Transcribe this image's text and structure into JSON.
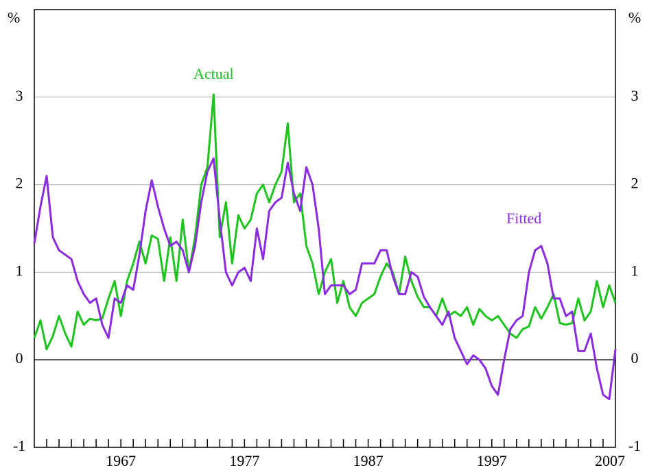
{
  "chart_data": {
    "type": "line",
    "y_unit_left": "%",
    "y_unit_right": "%",
    "x": [
      1960,
      1960.5,
      1961,
      1961.5,
      1962,
      1962.5,
      1963,
      1963.5,
      1964,
      1964.5,
      1965,
      1965.5,
      1966,
      1966.5,
      1967,
      1967.5,
      1968,
      1968.5,
      1969,
      1969.5,
      1970,
      1970.5,
      1971,
      1971.5,
      1972,
      1972.5,
      1973,
      1973.5,
      1974,
      1974.5,
      1975,
      1975.5,
      1976,
      1976.5,
      1977,
      1977.5,
      1978,
      1978.5,
      1979,
      1979.5,
      1980,
      1980.5,
      1981,
      1981.5,
      1982,
      1982.5,
      1983,
      1983.5,
      1984,
      1984.5,
      1985,
      1985.5,
      1986,
      1986.5,
      1987,
      1987.5,
      1988,
      1988.5,
      1989,
      1989.5,
      1990,
      1990.5,
      1991,
      1991.5,
      1992,
      1992.5,
      1993,
      1993.5,
      1994,
      1994.5,
      1995,
      1995.5,
      1996,
      1996.5,
      1997,
      1997.5,
      1998,
      1998.5,
      1999,
      1999.5,
      2000,
      2000.5,
      2001,
      2001.5,
      2002,
      2002.5,
      2003,
      2003.5,
      2004,
      2004.5,
      2005,
      2005.5,
      2006,
      2006.5,
      2007
    ],
    "series": [
      {
        "name": "Actual",
        "color": "#1ec31e",
        "values": [
          0.25,
          0.45,
          0.12,
          0.27,
          0.5,
          0.3,
          0.15,
          0.55,
          0.4,
          0.47,
          0.45,
          0.47,
          0.7,
          0.9,
          0.5,
          0.9,
          1.1,
          1.35,
          1.1,
          1.42,
          1.38,
          0.9,
          1.4,
          0.9,
          1.6,
          1.0,
          1.4,
          2.0,
          2.2,
          3.03,
          1.4,
          1.8,
          1.1,
          1.65,
          1.5,
          1.6,
          1.9,
          2.0,
          1.8,
          2.0,
          2.15,
          2.7,
          1.8,
          1.9,
          1.3,
          1.1,
          0.75,
          1.0,
          1.15,
          0.65,
          0.9,
          0.6,
          0.5,
          0.65,
          0.7,
          0.75,
          0.95,
          1.1,
          1.0,
          0.75,
          1.18,
          0.9,
          0.72,
          0.6,
          0.6,
          0.5,
          0.7,
          0.5,
          0.55,
          0.5,
          0.6,
          0.4,
          0.58,
          0.5,
          0.45,
          0.5,
          0.4,
          0.3,
          0.25,
          0.35,
          0.38,
          0.6,
          0.47,
          0.6,
          0.75,
          0.42,
          0.4,
          0.42,
          0.7,
          0.45,
          0.55,
          0.9,
          0.6,
          0.85,
          0.65
        ]
      },
      {
        "name": "Fitted",
        "color": "#8a2be2",
        "values": [
          1.33,
          1.75,
          2.1,
          1.4,
          1.25,
          1.2,
          1.15,
          0.9,
          0.75,
          0.65,
          0.7,
          0.4,
          0.25,
          0.7,
          0.65,
          0.85,
          0.8,
          1.2,
          1.7,
          2.05,
          1.75,
          1.5,
          1.3,
          1.35,
          1.25,
          1.0,
          1.3,
          1.8,
          2.15,
          2.3,
          1.6,
          1.0,
          0.85,
          1.0,
          1.05,
          0.9,
          1.5,
          1.15,
          1.7,
          1.8,
          1.85,
          2.25,
          1.9,
          1.7,
          2.2,
          2.0,
          1.5,
          0.75,
          0.85,
          0.85,
          0.85,
          0.75,
          0.8,
          1.1,
          1.1,
          1.1,
          1.25,
          1.25,
          0.95,
          0.75,
          0.75,
          1.0,
          0.95,
          0.72,
          0.6,
          0.5,
          0.4,
          0.55,
          0.25,
          0.1,
          -0.05,
          0.05,
          0.0,
          -0.1,
          -0.3,
          -0.4,
          0.0,
          0.35,
          0.45,
          0.5,
          1.0,
          1.25,
          1.3,
          1.1,
          0.7,
          0.7,
          0.5,
          0.55,
          0.1,
          0.1,
          0.3,
          -0.1,
          -0.4,
          -0.45,
          0.12
        ]
      }
    ],
    "annotations": [
      {
        "text": "Actual",
        "x": 1974.5,
        "y": 3.25
      },
      {
        "text": "Fitted",
        "x": 1999.6,
        "y": 1.6
      }
    ],
    "xlim": [
      1960,
      2007
    ],
    "xticks": [
      1967,
      1977,
      1987,
      1997,
      2007
    ],
    "xminor_ticks": [
      1961,
      1962,
      1963,
      1964,
      1965,
      1966,
      1967,
      1968,
      1969,
      1970,
      1971,
      1972,
      1973,
      1974,
      1975,
      1976,
      1977,
      1978,
      1979,
      1980,
      1981,
      1982,
      1983,
      1984,
      1985,
      1986,
      1987,
      1988,
      1989,
      1990,
      1991,
      1992,
      1993,
      1994,
      1995,
      1996,
      1997,
      1998,
      1999,
      2000,
      2001,
      2002,
      2003,
      2004,
      2005,
      2006
    ],
    "ylim": [
      -1,
      4
    ],
    "yticks": [
      -1,
      0,
      1,
      2,
      3
    ],
    "grid": true
  }
}
